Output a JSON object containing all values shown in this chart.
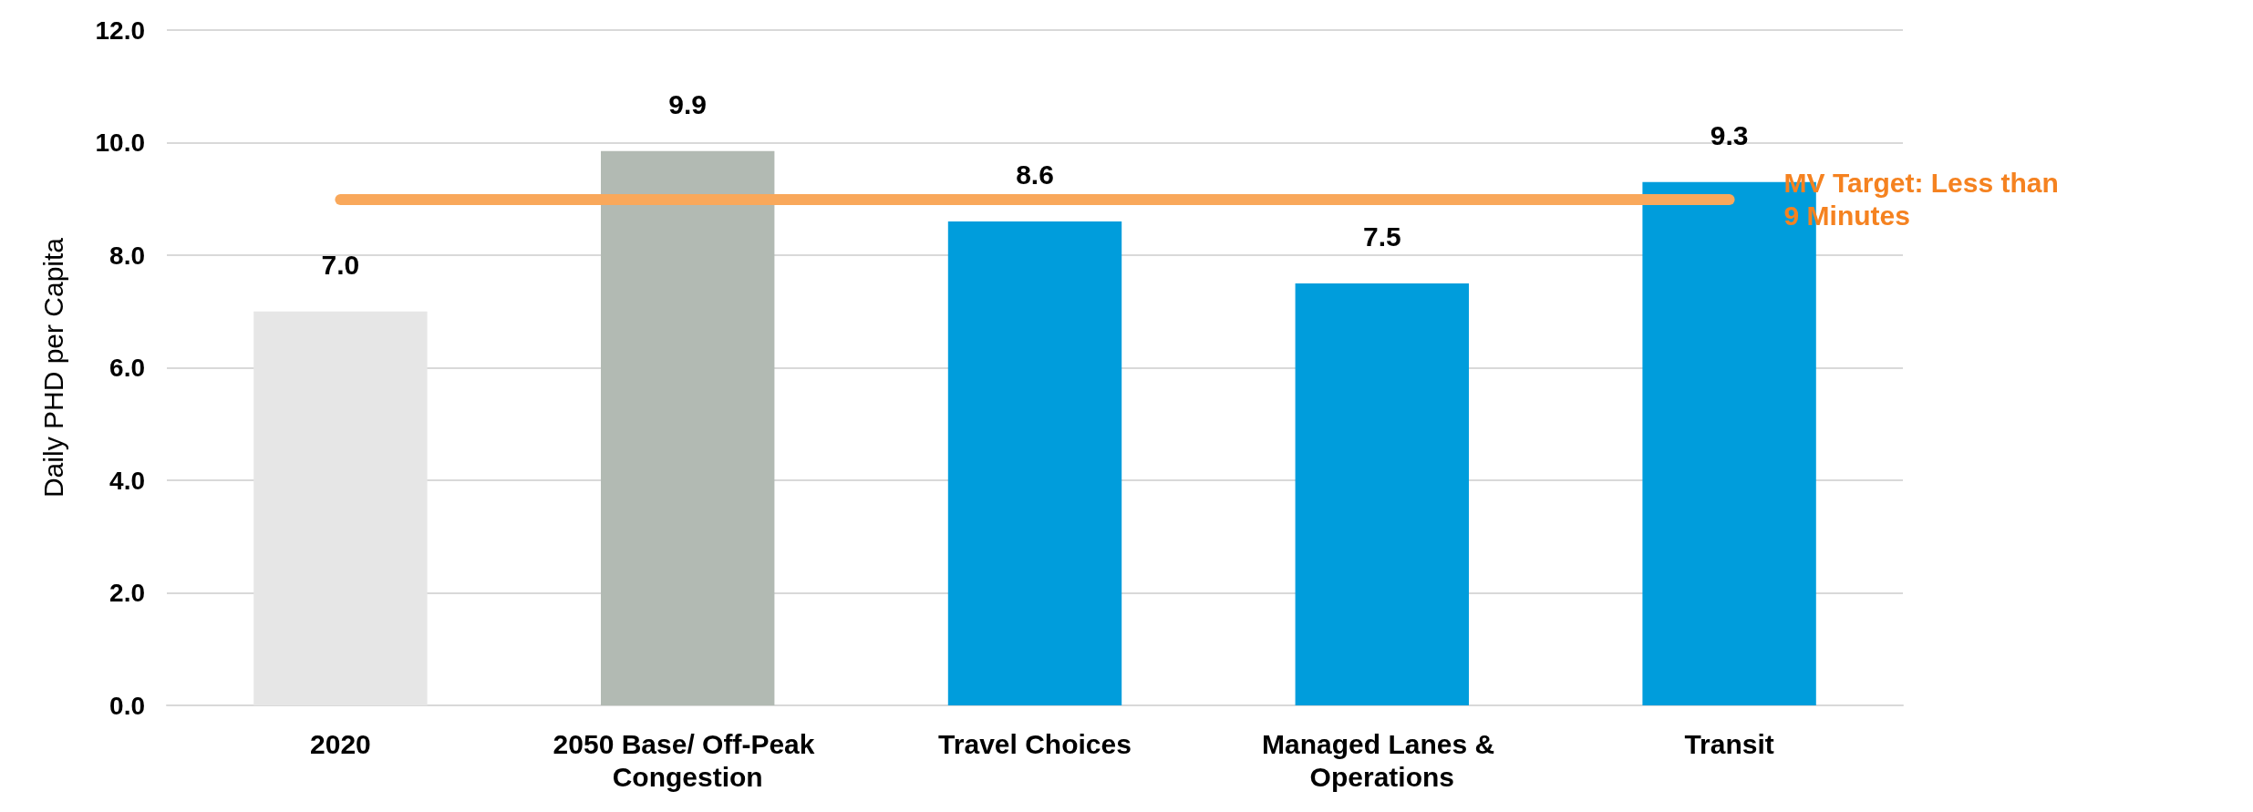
{
  "chart_data": {
    "type": "bar",
    "ylabel": "Daily PHD per Capita",
    "categories": [
      "2020",
      "2050 Base/ Off-Peak Congestion",
      "Travel Choices",
      "Managed Lanes & Operations",
      "Transit"
    ],
    "values": [
      7.0,
      9.85,
      8.6,
      7.5,
      9.3
    ],
    "value_labels": [
      "7.0",
      "9.9",
      "8.6",
      "7.5",
      "9.3"
    ],
    "colors": [
      "#e6e6e6",
      "#b2bab3",
      "#009ddc",
      "#009ddc",
      "#009ddc"
    ],
    "ylim": [
      0,
      12
    ],
    "yticks": [
      {
        "value": 0,
        "label": "0.0"
      },
      {
        "value": 2,
        "label": "2.0"
      },
      {
        "value": 4,
        "label": "4.0"
      },
      {
        "value": 6,
        "label": "6.0"
      },
      {
        "value": 8,
        "label": "8.0"
      },
      {
        "value": 10,
        "label": "10.0"
      },
      {
        "value": 12,
        "label": "12.0"
      }
    ],
    "grid": "y",
    "ref_lines": [
      {
        "axis": "y",
        "value": 9,
        "label": "MV Target: Less than\n9 Minutes",
        "color": "#f9a85b"
      }
    ]
  }
}
